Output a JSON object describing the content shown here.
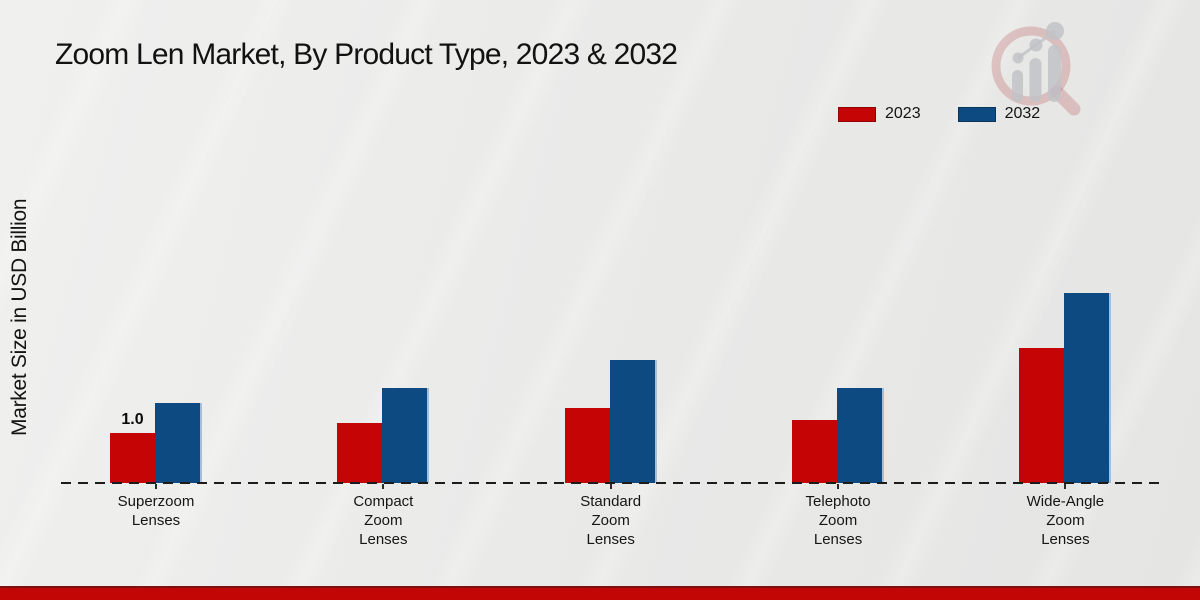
{
  "title": "Zoom Len Market, By Product Type, 2023 & 2032",
  "y_axis_label": "Market Size in USD Billion",
  "watermark": "market-research-future-logo",
  "footer": {
    "bar_color": "#c20505",
    "bar_top_edge_color": "#7e1010"
  },
  "legend": {
    "items": [
      {
        "label": "2023",
        "color": "#c50505"
      },
      {
        "label": "2032",
        "color": "#0d4a82"
      }
    ]
  },
  "chart_data": {
    "type": "bar",
    "title": "Zoom Len Market, By Product Type, 2023 & 2032",
    "ylabel": "Market Size in USD Billion",
    "xlabel": "",
    "categories": [
      "Superzoom Lenses",
      "Compact Zoom Lenses",
      "Standard Zoom Lenses",
      "Telephoto Zoom Lenses",
      "Wide-Angle Zoom Lenses"
    ],
    "category_label_lines": [
      [
        "Superzoom",
        "Lenses"
      ],
      [
        "Compact",
        "Zoom",
        "Lenses"
      ],
      [
        "Standard",
        "Zoom",
        "Lenses"
      ],
      [
        "Telephoto",
        "Zoom",
        "Lenses"
      ],
      [
        "Wide-Angle",
        "Zoom",
        "Lenses"
      ]
    ],
    "series": [
      {
        "name": "2023",
        "color": "#c50505",
        "values": [
          1.0,
          1.2,
          1.5,
          1.25,
          2.7
        ]
      },
      {
        "name": "2032",
        "color": "#0d4a82",
        "values": [
          1.6,
          1.9,
          2.45,
          1.9,
          3.8
        ]
      }
    ],
    "data_labels": [
      {
        "series": "2023",
        "category_index": 0,
        "text": "1.0"
      }
    ],
    "units": "USD Billion",
    "legend_position": "top-right",
    "grid": false,
    "y_axis_visible": false,
    "x_axis_style": "dashed-black"
  }
}
